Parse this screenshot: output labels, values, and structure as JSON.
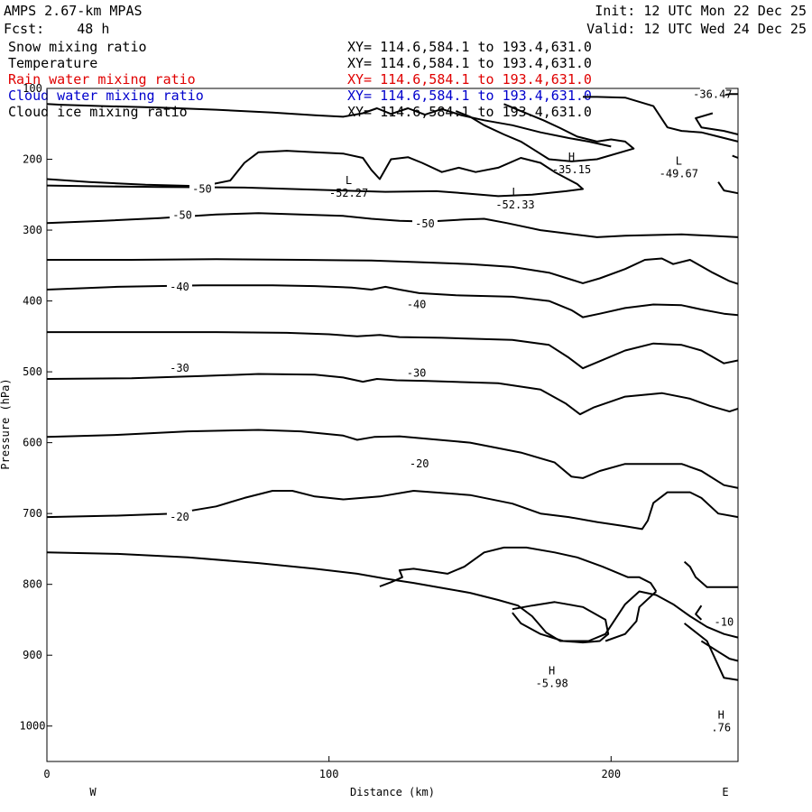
{
  "header": {
    "title": "AMPS 2.67-km MPAS",
    "forecast": "Fcst:    48 h",
    "init": "Init: 12 UTC Mon 22 Dec 25",
    "valid": "Valid: 12 UTC Wed 24 Dec 25"
  },
  "fields": [
    {
      "name": "Snow mixing ratio",
      "xy": "XY= 114.6,584.1 to 193.4,631.0",
      "color": "#000000"
    },
    {
      "name": "Temperature",
      "xy": "XY= 114.6,584.1 to 193.4,631.0",
      "color": "#000000"
    },
    {
      "name": "Rain water mixing ratio",
      "xy": "XY= 114.6,584.1 to 193.4,631.0",
      "color": "#e00000"
    },
    {
      "name": "Cloud water mixing ratio",
      "xy": "XY= 114.6,584.1 to 193.4,631.0",
      "color": "#0000cc"
    },
    {
      "name": "Cloud ice mixing ratio",
      "xy": "XY= 114.6,584.1 to 193.4,631.0",
      "color": "#000000"
    }
  ],
  "chart_data": {
    "type": "contour",
    "xlabel": "Distance (km)",
    "ylabel": "Pressure (hPa)",
    "xlim": [
      0,
      245
    ],
    "ylim": [
      1050,
      100
    ],
    "x_ticks": [
      0,
      100,
      200
    ],
    "y_ticks": [
      100,
      200,
      300,
      400,
      500,
      600,
      700,
      800,
      900,
      1000
    ],
    "x_tick_labels": [
      "0",
      "100",
      "200"
    ],
    "y_tick_labels": [
      "100",
      "200",
      "300",
      "400",
      "500",
      "600",
      "700",
      "800",
      "900",
      "1000"
    ],
    "direction_left": "W",
    "direction_right": "E",
    "contour_labels": [
      {
        "text": "-50",
        "x": 55,
        "y": 242
      },
      {
        "text": "-50",
        "x": 48,
        "y": 279
      },
      {
        "text": "-50",
        "x": 134,
        "y": 291
      },
      {
        "text": "-40",
        "x": 47,
        "y": 380
      },
      {
        "text": "-40",
        "x": 131,
        "y": 405
      },
      {
        "text": "-30",
        "x": 47,
        "y": 495
      },
      {
        "text": "-30",
        "x": 131,
        "y": 502
      },
      {
        "text": "-20",
        "x": 132,
        "y": 630
      },
      {
        "text": "-20",
        "x": 47,
        "y": 705
      },
      {
        "text": "-10",
        "x": 240,
        "y": 853
      },
      {
        "text": "-36.47",
        "x": 236,
        "y": 108
      }
    ],
    "extrema": [
      {
        "type": "L",
        "value": "-52.27",
        "x": 107,
        "y": 245
      },
      {
        "type": "L",
        "value": "-52.33",
        "x": 166,
        "y": 262
      },
      {
        "type": "H",
        "value": "-35.15",
        "x": 186,
        "y": 212
      },
      {
        "type": "L",
        "value": "-49.67",
        "x": 224,
        "y": 218
      },
      {
        "type": "H",
        "value": "-5.98",
        "x": 179,
        "y": 937
      },
      {
        "type": "H",
        "value": ".76",
        "x": 239,
        "y": 1000
      }
    ],
    "contours": [
      [
        [
          0,
          122
        ],
        [
          5,
          123
        ],
        [
          20,
          125
        ],
        [
          40,
          127
        ],
        [
          60,
          130
        ],
        [
          80,
          134
        ],
        [
          95,
          138
        ],
        [
          105,
          140
        ],
        [
          112,
          135
        ],
        [
          117,
          128
        ],
        [
          122,
          136
        ],
        [
          128,
          128
        ],
        [
          134,
          137
        ],
        [
          140,
          129
        ],
        [
          147,
          138
        ],
        [
          155,
          145
        ],
        [
          165,
          152
        ],
        [
          175,
          162
        ],
        [
          185,
          170
        ],
        [
          192,
          175
        ],
        [
          200,
          182
        ]
      ],
      [
        [
          0,
          228
        ],
        [
          15,
          232
        ],
        [
          35,
          236
        ],
        [
          55,
          238
        ],
        [
          65,
          230
        ],
        [
          70,
          205
        ],
        [
          75,
          190
        ],
        [
          85,
          188
        ],
        [
          95,
          190
        ],
        [
          105,
          192
        ],
        [
          112,
          198
        ],
        [
          115,
          215
        ],
        [
          118,
          228
        ],
        [
          122,
          200
        ],
        [
          128,
          197
        ],
        [
          133,
          205
        ],
        [
          140,
          218
        ],
        [
          146,
          212
        ],
        [
          152,
          218
        ],
        [
          160,
          212
        ],
        [
          168,
          198
        ],
        [
          175,
          205
        ],
        [
          180,
          218
        ],
        [
          188,
          235
        ],
        [
          190,
          242
        ],
        [
          184,
          245
        ],
        [
          172,
          250
        ],
        [
          160,
          252
        ],
        [
          148,
          248
        ],
        [
          138,
          245
        ],
        [
          120,
          246
        ],
        [
          95,
          243
        ],
        [
          70,
          240
        ],
        [
          40,
          239
        ],
        [
          15,
          238
        ],
        [
          0,
          237
        ]
      ],
      [
        [
          0,
          290
        ],
        [
          20,
          287
        ],
        [
          40,
          283
        ],
        [
          60,
          278
        ],
        [
          75,
          276
        ],
        [
          90,
          278
        ],
        [
          105,
          280
        ],
        [
          115,
          284
        ],
        [
          125,
          287
        ],
        [
          135,
          288
        ],
        [
          148,
          285
        ],
        [
          155,
          284
        ],
        [
          163,
          290
        ],
        [
          175,
          300
        ],
        [
          185,
          305
        ],
        [
          195,
          310
        ],
        [
          205,
          308
        ],
        [
          215,
          307
        ],
        [
          225,
          306
        ],
        [
          235,
          308
        ],
        [
          245,
          310
        ]
      ],
      [
        [
          0,
          342
        ],
        [
          30,
          342
        ],
        [
          60,
          341
        ],
        [
          90,
          342
        ],
        [
          115,
          343
        ],
        [
          130,
          345
        ],
        [
          150,
          348
        ],
        [
          165,
          352
        ],
        [
          178,
          360
        ],
        [
          186,
          370
        ],
        [
          190,
          375
        ],
        [
          196,
          368
        ],
        [
          205,
          355
        ],
        [
          212,
          342
        ],
        [
          218,
          340
        ],
        [
          222,
          348
        ],
        [
          228,
          342
        ],
        [
          236,
          360
        ],
        [
          242,
          372
        ],
        [
          245,
          376
        ]
      ],
      [
        [
          0,
          384
        ],
        [
          25,
          380
        ],
        [
          55,
          378
        ],
        [
          80,
          378
        ],
        [
          95,
          379
        ],
        [
          108,
          381
        ],
        [
          115,
          384
        ],
        [
          120,
          380
        ],
        [
          125,
          384
        ],
        [
          132,
          389
        ],
        [
          145,
          392
        ],
        [
          165,
          394
        ],
        [
          178,
          400
        ],
        [
          186,
          413
        ],
        [
          190,
          423
        ],
        [
          196,
          418
        ],
        [
          205,
          410
        ],
        [
          215,
          405
        ],
        [
          225,
          406
        ],
        [
          232,
          412
        ],
        [
          240,
          418
        ],
        [
          245,
          420
        ]
      ],
      [
        [
          0,
          444
        ],
        [
          30,
          444
        ],
        [
          60,
          444
        ],
        [
          85,
          445
        ],
        [
          100,
          447
        ],
        [
          110,
          450
        ],
        [
          118,
          448
        ],
        [
          125,
          451
        ],
        [
          140,
          452
        ],
        [
          165,
          455
        ],
        [
          178,
          462
        ],
        [
          185,
          480
        ],
        [
          190,
          495
        ],
        [
          196,
          485
        ],
        [
          205,
          470
        ],
        [
          215,
          460
        ],
        [
          225,
          462
        ],
        [
          232,
          470
        ],
        [
          240,
          488
        ],
        [
          245,
          484
        ]
      ],
      [
        [
          0,
          510
        ],
        [
          30,
          509
        ],
        [
          55,
          506
        ],
        [
          75,
          503
        ],
        [
          95,
          504
        ],
        [
          105,
          508
        ],
        [
          112,
          514
        ],
        [
          117,
          510
        ],
        [
          124,
          512
        ],
        [
          135,
          513
        ],
        [
          160,
          516
        ],
        [
          175,
          525
        ],
        [
          184,
          545
        ],
        [
          189,
          560
        ],
        [
          194,
          550
        ],
        [
          205,
          535
        ],
        [
          218,
          530
        ],
        [
          228,
          538
        ],
        [
          235,
          548
        ],
        [
          242,
          556
        ],
        [
          245,
          552
        ]
      ],
      [
        [
          0,
          592
        ],
        [
          25,
          589
        ],
        [
          50,
          584
        ],
        [
          75,
          582
        ],
        [
          90,
          584
        ],
        [
          105,
          590
        ],
        [
          110,
          596
        ],
        [
          116,
          592
        ],
        [
          125,
          591
        ],
        [
          150,
          600
        ],
        [
          168,
          614
        ],
        [
          180,
          628
        ],
        [
          186,
          648
        ],
        [
          190,
          650
        ],
        [
          196,
          640
        ],
        [
          205,
          630
        ],
        [
          215,
          630
        ],
        [
          225,
          630
        ],
        [
          232,
          640
        ],
        [
          240,
          660
        ],
        [
          245,
          664
        ]
      ],
      [
        [
          0,
          705
        ],
        [
          25,
          703
        ],
        [
          45,
          700
        ],
        [
          60,
          690
        ],
        [
          70,
          678
        ],
        [
          80,
          668
        ],
        [
          87,
          668
        ],
        [
          95,
          676
        ],
        [
          105,
          680
        ],
        [
          118,
          676
        ],
        [
          130,
          668
        ],
        [
          150,
          674
        ],
        [
          165,
          686
        ],
        [
          175,
          700
        ],
        [
          185,
          705
        ],
        [
          195,
          712
        ],
        [
          205,
          718
        ],
        [
          211,
          722
        ],
        [
          213,
          710
        ],
        [
          215,
          685
        ],
        [
          220,
          670
        ],
        [
          228,
          670
        ],
        [
          232,
          678
        ],
        [
          238,
          700
        ],
        [
          245,
          705
        ]
      ],
      [
        [
          0,
          755
        ],
        [
          25,
          757
        ],
        [
          50,
          762
        ],
        [
          75,
          770
        ],
        [
          95,
          778
        ],
        [
          110,
          785
        ],
        [
          120,
          792
        ],
        [
          130,
          798
        ],
        [
          140,
          805
        ],
        [
          150,
          812
        ],
        [
          160,
          822
        ],
        [
          167,
          830
        ],
        [
          172,
          845
        ],
        [
          177,
          868
        ],
        [
          182,
          880
        ],
        [
          192,
          880
        ],
        [
          198,
          870
        ],
        [
          205,
          828
        ],
        [
          210,
          810
        ],
        [
          216,
          815
        ],
        [
          222,
          828
        ],
        [
          228,
          845
        ],
        [
          234,
          860
        ],
        [
          240,
          870
        ],
        [
          245,
          875
        ]
      ],
      [
        [
          118,
          803
        ],
        [
          122,
          797
        ],
        [
          126,
          790
        ],
        [
          125,
          780
        ],
        [
          130,
          778
        ],
        [
          137,
          782
        ],
        [
          142,
          785
        ],
        [
          148,
          775
        ],
        [
          155,
          755
        ],
        [
          162,
          748
        ],
        [
          170,
          748
        ],
        [
          180,
          755
        ],
        [
          188,
          762
        ],
        [
          197,
          775
        ],
        [
          206,
          790
        ],
        [
          210,
          790
        ],
        [
          214,
          798
        ],
        [
          216,
          810
        ]
      ],
      [
        [
          165,
          835
        ],
        [
          172,
          830
        ],
        [
          180,
          825
        ],
        [
          190,
          832
        ],
        [
          198,
          850
        ],
        [
          199,
          870
        ],
        [
          196,
          880
        ],
        [
          190,
          882
        ],
        [
          183,
          880
        ],
        [
          175,
          870
        ],
        [
          168,
          855
        ],
        [
          165,
          840
        ]
      ],
      [
        [
          226,
          768
        ],
        [
          228,
          775
        ],
        [
          230,
          790
        ],
        [
          234,
          804
        ],
        [
          240,
          804
        ],
        [
          245,
          804
        ]
      ],
      [
        [
          232,
          830
        ],
        [
          230,
          842
        ],
        [
          232,
          850
        ]
      ],
      [
        [
          232,
          880
        ],
        [
          238,
          895
        ],
        [
          242,
          905
        ],
        [
          245,
          908
        ]
      ],
      [
        [
          226,
          855
        ],
        [
          234,
          880
        ],
        [
          240,
          932
        ],
        [
          245,
          935
        ]
      ],
      [
        [
          198,
          880
        ],
        [
          205,
          870
        ],
        [
          209,
          852
        ],
        [
          210,
          832
        ],
        [
          216,
          810
        ]
      ],
      [
        [
          162,
          122
        ],
        [
          168,
          132
        ],
        [
          176,
          145
        ],
        [
          182,
          156
        ],
        [
          188,
          168
        ],
        [
          195,
          175
        ],
        [
          200,
          172
        ],
        [
          205,
          175
        ],
        [
          208,
          185
        ],
        [
          195,
          200
        ],
        [
          186,
          203
        ],
        [
          178,
          200
        ],
        [
          172,
          185
        ],
        [
          168,
          175
        ],
        [
          162,
          165
        ],
        [
          155,
          152
        ],
        [
          150,
          140
        ],
        [
          145,
          132
        ]
      ],
      [
        [
          190,
          112
        ],
        [
          195,
          112
        ],
        [
          205,
          113
        ],
        [
          215,
          125
        ],
        [
          220,
          155
        ],
        [
          225,
          160
        ],
        [
          232,
          162
        ],
        [
          238,
          168
        ],
        [
          245,
          175
        ]
      ],
      [
        [
          236,
          112
        ],
        [
          242,
          108
        ],
        [
          245,
          108
        ]
      ],
      [
        [
          236,
          135
        ],
        [
          230,
          142
        ],
        [
          232,
          155
        ],
        [
          240,
          160
        ],
        [
          245,
          165
        ]
      ],
      [
        [
          243,
          195
        ],
        [
          245,
          198
        ]
      ],
      [
        [
          238,
          232
        ],
        [
          240,
          244
        ],
        [
          245,
          248
        ]
      ]
    ]
  }
}
